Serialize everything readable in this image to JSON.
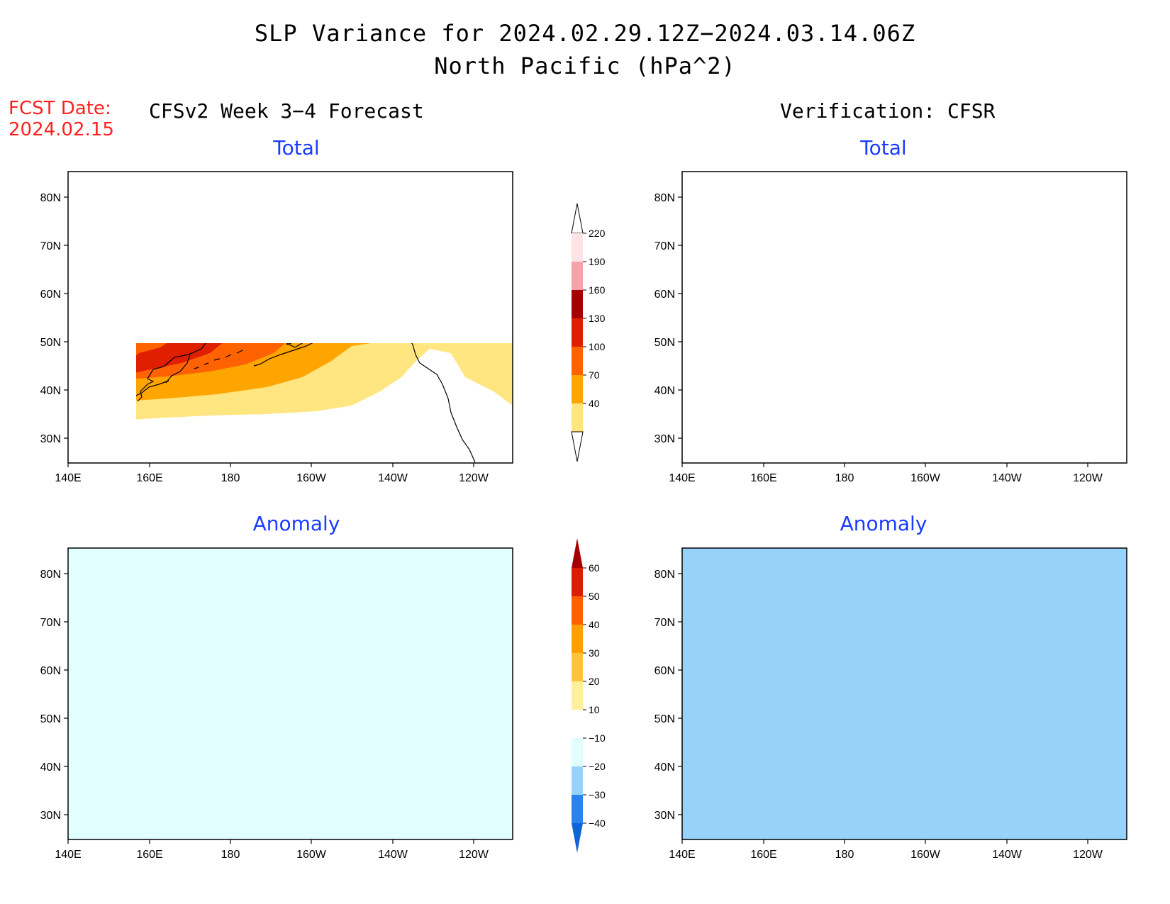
{
  "title": "SLP Variance for 2024.02.29.12Z−2024.03.14.06Z",
  "subtitle": "North Pacific (hPa^2)",
  "fcst_date": {
    "label": "FCST Date:",
    "value": "2024.02.15"
  },
  "columns": {
    "left": "CFSv2 Week 3−4 Forecast",
    "right": "Verification: CFSR"
  },
  "panels": {
    "forecast_total": {
      "title": "Total"
    },
    "verification_total": {
      "title": "Total"
    },
    "forecast_anomaly": {
      "title": "Anomaly"
    },
    "verification_anomaly": {
      "title": "Anomaly"
    }
  },
  "axes": {
    "lon_labels": [
      "140E",
      "160E",
      "180",
      "160W",
      "140W",
      "120W"
    ],
    "lat_labels": [
      "80N",
      "70N",
      "60N",
      "50N",
      "40N",
      "30N"
    ]
  },
  "colorbars": {
    "total": {
      "levels": [
        "40",
        "70",
        "100",
        "130",
        "160",
        "190",
        "220"
      ],
      "colors": [
        "#ffe680",
        "#ffa500",
        "#ff6200",
        "#e01e00",
        "#a50000",
        "#f4a3a8",
        "#fde3e5"
      ]
    },
    "anomaly": {
      "levels": [
        "−40",
        "−30",
        "−20",
        "−10",
        "10",
        "20",
        "30",
        "40",
        "50",
        "60"
      ],
      "colors": [
        "#0f64d9",
        "#2a82ec",
        "#96d2fa",
        "#e1ffff",
        "#ffffff",
        "#fff09e",
        "#ffc43a",
        "#ffa000",
        "#ff5f00",
        "#dc1e00",
        "#a50000"
      ]
    }
  }
}
